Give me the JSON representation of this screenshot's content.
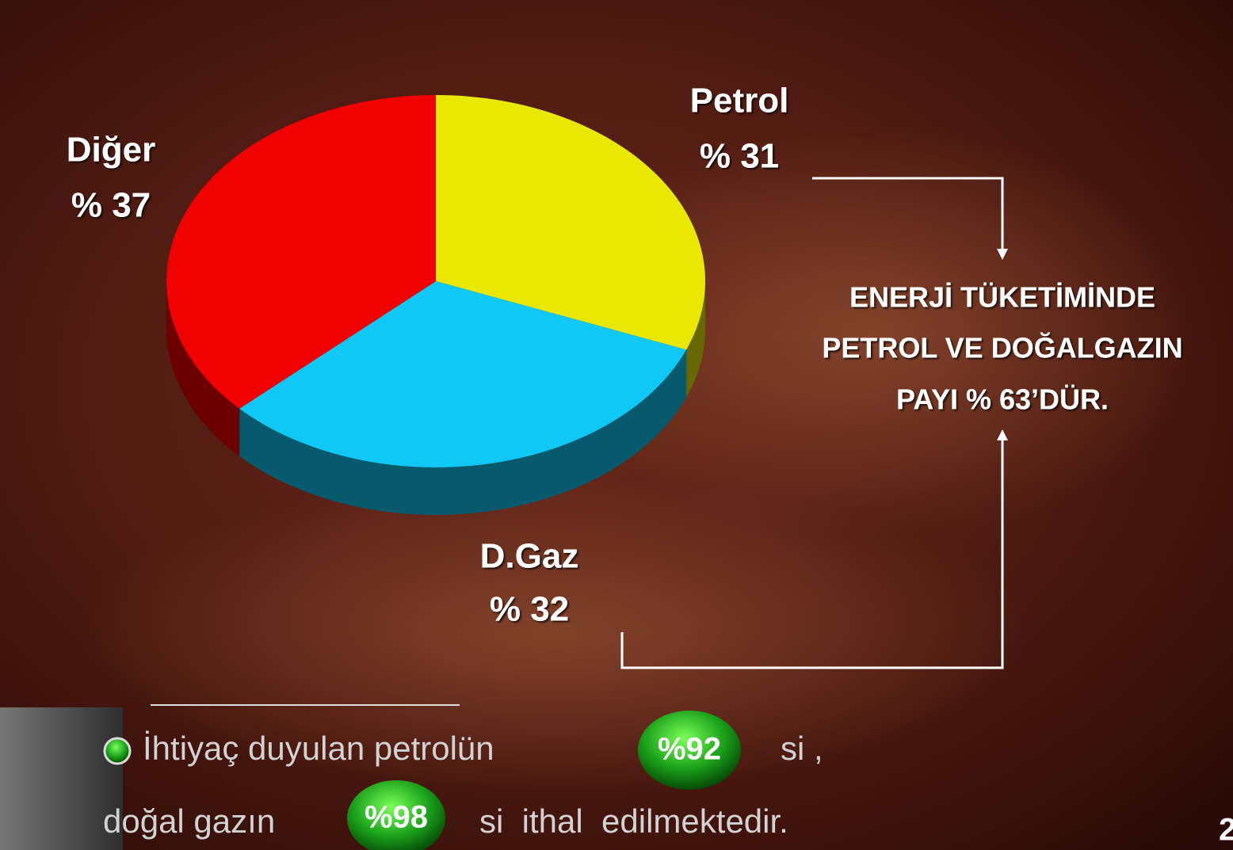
{
  "chart_data": {
    "type": "pie",
    "categories": [
      "Petrol",
      "D.Gaz",
      "Diğer"
    ],
    "values": [
      31,
      32,
      37
    ],
    "value_labels": [
      "% 31",
      "% 32",
      "% 37"
    ],
    "colors": [
      "#e8e800",
      "#10c8f5",
      "#f00000"
    ]
  },
  "callout": [
    "ENERJİ TÜKETİMİNDE",
    "PETROL VE DOĞALGAZIN",
    "PAYI % 63’DÜR."
  ],
  "footnote": {
    "line1": "İhtiyaç duyulan petrolün",
    "badge1": "%92",
    "tail1": "si ,",
    "line2": "doğal gazın",
    "badge2": "%98",
    "tail2": "si  ithal  edilmektedir."
  },
  "page_number": "2"
}
